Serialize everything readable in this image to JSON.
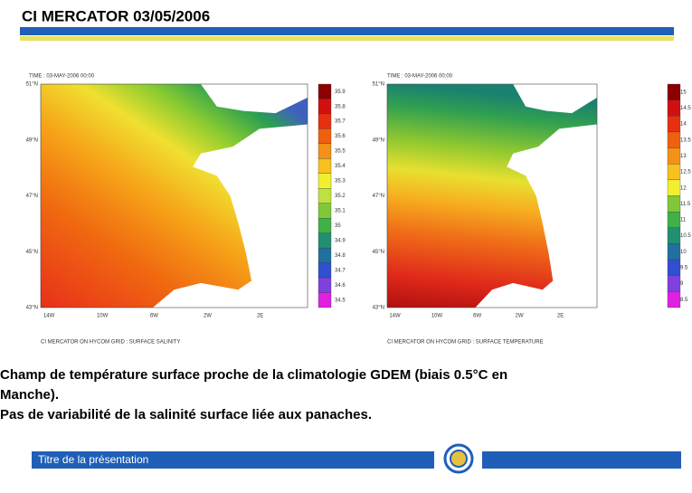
{
  "header": {
    "title": "CI MERCATOR 03/05/2006"
  },
  "maps": [
    {
      "time": "TIME : 03-MAY-2006 00:00",
      "caption": "CI MERCATOR ON HYCOM GRID : SURFACE SALINITY",
      "lat_labels": [
        "51°N",
        "49°N",
        "47°N",
        "45°N",
        "43°N"
      ],
      "lon_labels": [
        "14W",
        "10W",
        "6W",
        "2W",
        "2E"
      ],
      "colorbar": [
        "35.9",
        "35.8",
        "35.7",
        "35.6",
        "35.5",
        "35.4",
        "35.3",
        "35.2",
        "35.1",
        "35",
        "34.9",
        "34.8",
        "34.7",
        "34.6",
        "34.5"
      ]
    },
    {
      "time": "TIME : 03-MAY-2006 00:00",
      "caption": "CI MERCATOR ON HYCOM GRID : SURFACE TEMPERATURE",
      "lat_labels": [
        "51°N",
        "49°N",
        "47°N",
        "45°N",
        "43°N"
      ],
      "lon_labels": [
        "14W",
        "10W",
        "6W",
        "2W",
        "2E"
      ],
      "colorbar": [
        "15",
        "14.5",
        "14",
        "13.5",
        "13",
        "12.5",
        "12",
        "11.5",
        "11",
        "10.5",
        "10",
        "9.5",
        "9",
        "8.5"
      ]
    }
  ],
  "text": {
    "lines": [
      "Champ de température  surface proche de la climatologie GDEM (biais 0.5°C en",
      "Manche).",
      "Pas de variabilité de la salinité surface liée aux panaches."
    ]
  },
  "footer": {
    "title": "Titre de la présentation"
  }
}
